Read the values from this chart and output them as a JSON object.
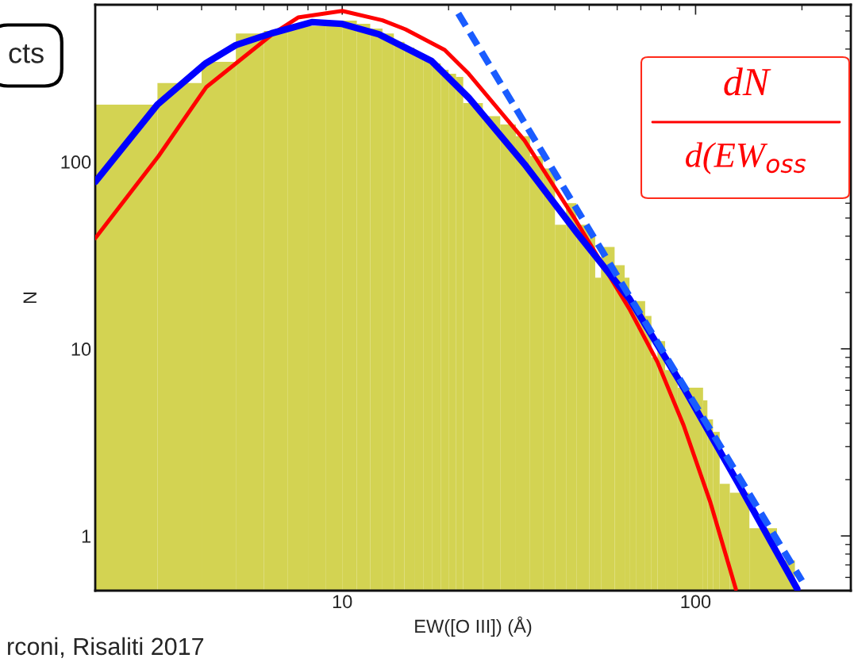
{
  "chart_data": {
    "type": "histogram",
    "bins": [
      2,
      3,
      4,
      5,
      6,
      7,
      8,
      9,
      10,
      11,
      12,
      13,
      14,
      15,
      16,
      17,
      18,
      19,
      20,
      21,
      22,
      25,
      28,
      31,
      34,
      37,
      40,
      43,
      46,
      50,
      52,
      54,
      59,
      63,
      65,
      68,
      72,
      75,
      78,
      82,
      89,
      105,
      108,
      112,
      117,
      125,
      142,
      170,
      191
    ],
    "values": [
      202,
      263,
      342,
      485,
      500,
      531,
      531,
      531,
      567,
      546,
      515,
      485,
      437,
      407,
      380,
      360,
      335,
      310,
      295,
      284,
      206,
      175,
      158,
      137,
      107,
      92,
      46,
      60,
      46,
      41,
      24,
      35,
      28,
      24,
      18,
      18,
      15,
      9,
      11,
      7.7,
      6.2,
      5.3,
      4.2,
      3.6,
      1.9,
      1.7,
      1.1,
      0.74
    ],
    "color": "#d3d352",
    "series": [
      {
        "type": "line",
        "color": "#ff0000",
        "line_style": "solid",
        "x": [
          2,
          3.02,
          4.12,
          6.34,
          7.5,
          10,
          13,
          15.1,
          19.5,
          22.8,
          32.8,
          46,
          65,
          78,
          92.5,
          110,
          130
        ],
        "values": [
          39,
          107,
          250,
          480,
          590,
          640,
          570,
          510,
          396,
          295,
          130,
          48,
          16.3,
          8.5,
          3.9,
          1.52,
          0.52
        ]
      },
      {
        "type": "line",
        "color": "#0000ff",
        "line_style": "solid",
        "x": [
          2,
          3,
          4.1,
          5,
          6.3,
          8.2,
          10,
          12.7,
          17.9,
          22.8,
          32.8,
          46,
          65,
          92.5,
          131,
          194
        ],
        "values": [
          78,
          202,
          335,
          420,
          485,
          557,
          545,
          480,
          345,
          220,
          97,
          42,
          18.5,
          6.2,
          1.96,
          0.52
        ]
      },
      {
        "type": "line",
        "color": "#1a5cff",
        "line_style": "dashed",
        "x": [
          21.3,
          200
        ],
        "values": [
          620,
          0.575
        ]
      }
    ],
    "log": "xy",
    "xlim": [
      2,
      275
    ],
    "ylim": [
      0.51,
      690
    ],
    "xticks": [
      10,
      100
    ],
    "yticks": [
      1,
      10,
      100
    ],
    "xlabel": "EW([O III]) (Å)",
    "ylabel": "N",
    "grid": false,
    "annotations": [
      "cts",
      "dN",
      "d(EW$_{oss}$",
      "rconi, Risaliti 2017"
    ]
  }
}
